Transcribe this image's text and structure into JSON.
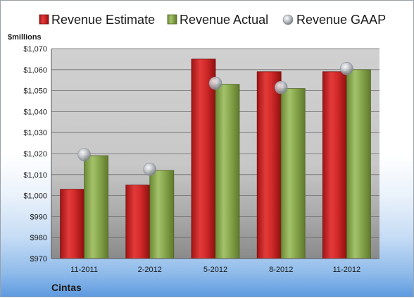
{
  "chart_data": {
    "type": "bar",
    "unit_label": "$millions",
    "company": "Cintas",
    "categories": [
      "11-2011",
      "2-2012",
      "5-2012",
      "8-2012",
      "11-2012"
    ],
    "series": [
      {
        "name": "Revenue Estimate",
        "kind": "bar",
        "color": "#d42a2a",
        "values": [
          1003,
          1005,
          1065,
          1059,
          1059
        ]
      },
      {
        "name": "Revenue Actual",
        "kind": "bar",
        "color": "#8aa84e",
        "values": [
          1019,
          1012,
          1053,
          1051,
          1060
        ]
      },
      {
        "name": "Revenue GAAP",
        "kind": "marker",
        "color": "#b8bcc4",
        "values": [
          1019.5,
          1012.5,
          1053.5,
          1051.5,
          1060.5
        ]
      }
    ],
    "ylim": [
      970,
      1070
    ],
    "yticks": [
      "$970",
      "$980",
      "$990",
      "$1,000",
      "$1,010",
      "$1,020",
      "$1,030",
      "$1,040",
      "$1,050",
      "$1,060",
      "$1,070"
    ],
    "ytick_values": [
      970,
      980,
      990,
      1000,
      1010,
      1020,
      1030,
      1040,
      1050,
      1060,
      1070
    ],
    "grid": true,
    "legend_position": "top"
  }
}
